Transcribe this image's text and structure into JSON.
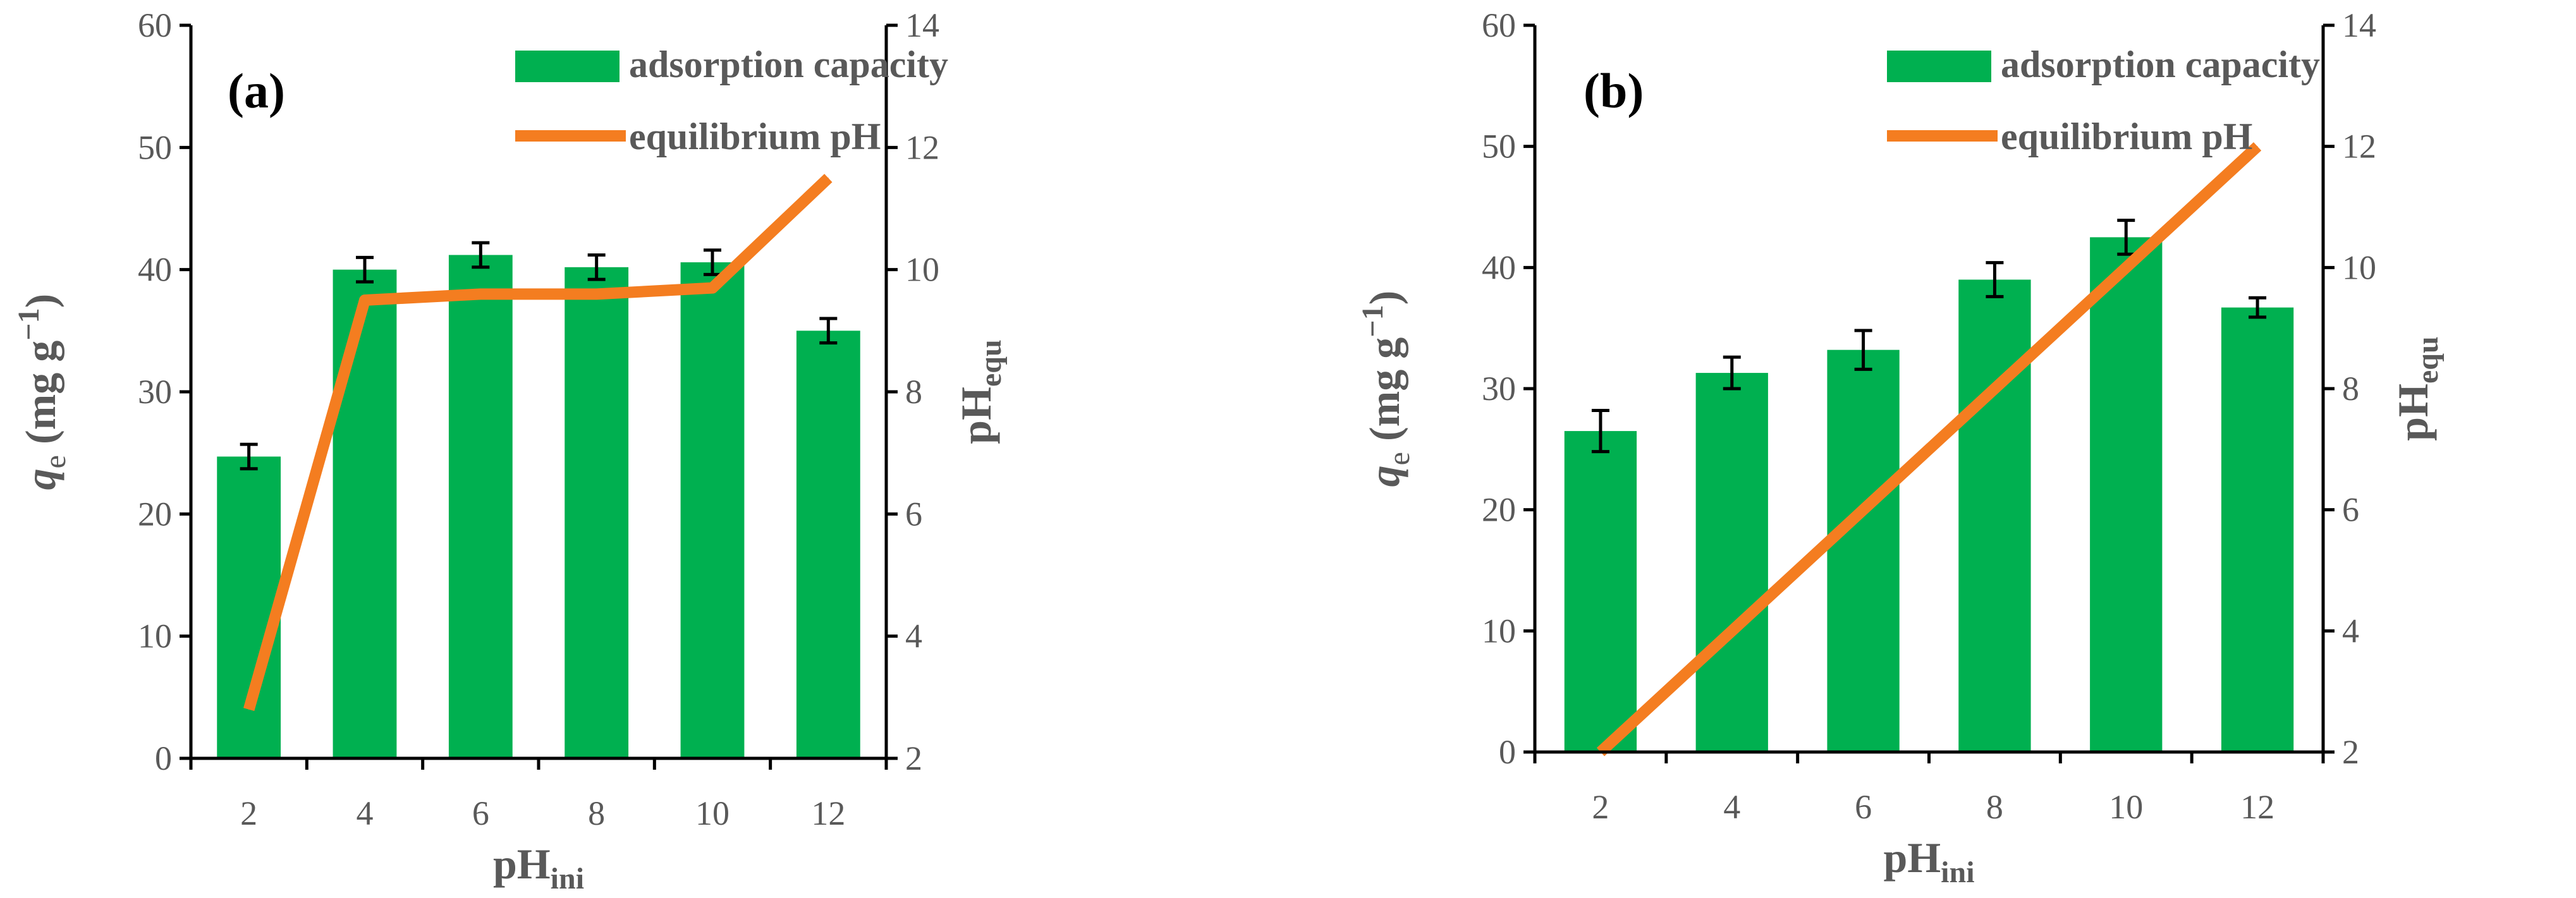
{
  "colors": {
    "bar": "#00b050",
    "line": "#f47d20",
    "axis": "#000000",
    "text": "#595959",
    "error": "#000000"
  },
  "common": {
    "left_ticks": [
      "0",
      "10",
      "20",
      "30",
      "40",
      "50",
      "60"
    ],
    "right_ticks": [
      "2",
      "4",
      "6",
      "8",
      "10",
      "12",
      "14"
    ],
    "ylabel_q": "q",
    "ylabel_e": "e",
    "ylabel_units": " (mg g",
    "ylabel_exp": "−1",
    "ylabel_close": ")",
    "y2label": "pH",
    "y2label_sub": "equ",
    "xlabel": "pH",
    "xlabel_sub": "ini",
    "legend_bar": "adsorption capacity",
    "legend_line": "equilibrium pH"
  },
  "chart_data": [
    {
      "type": "bar",
      "panel": "(a)",
      "title": "(a)",
      "categories": [
        "2",
        "4",
        "6",
        "8",
        "10",
        "12"
      ],
      "ylim": [
        0,
        60
      ],
      "y2lim": [
        2,
        14
      ],
      "series": [
        {
          "name": "adsorption capacity",
          "type": "bar",
          "axis": "left",
          "values": [
            24.7,
            40.0,
            41.2,
            40.2,
            40.6,
            35.0
          ],
          "errors": [
            1.0,
            1.0,
            1.0,
            1.0,
            1.0,
            1.0
          ]
        },
        {
          "name": "equilibrium pH",
          "type": "line",
          "axis": "right",
          "values": [
            2.8,
            9.5,
            9.6,
            9.6,
            9.7,
            11.5
          ]
        }
      ],
      "xlabel": "pHini",
      "ylabel": "qe (mg g−1)",
      "y2label": "pHequ",
      "legend_position": "top-right"
    },
    {
      "type": "bar",
      "panel": "(b)",
      "title": "(b)",
      "categories": [
        "2",
        "4",
        "6",
        "8",
        "10",
        "12"
      ],
      "ylim": [
        0,
        60
      ],
      "y2lim": [
        2,
        14
      ],
      "series": [
        {
          "name": "adsorption capacity",
          "type": "bar",
          "axis": "left",
          "values": [
            26.5,
            31.3,
            33.2,
            39.0,
            42.5,
            36.7
          ],
          "errors": [
            1.7,
            1.3,
            1.6,
            1.4,
            1.4,
            0.8
          ]
        },
        {
          "name": "equilibrium pH",
          "type": "line",
          "axis": "right",
          "values": [
            2.0,
            4.0,
            6.0,
            8.0,
            10.0,
            12.0
          ]
        }
      ],
      "xlabel": "pHini",
      "ylabel": "qe (mg g−1)",
      "y2label": "pHequ",
      "legend_position": "top-right"
    }
  ]
}
